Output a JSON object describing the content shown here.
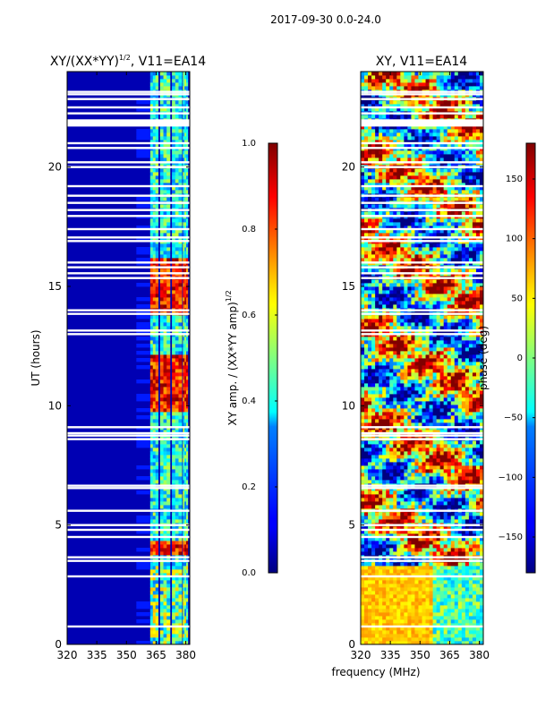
{
  "suptitle": "2017-09-30 0.0-24.0",
  "shared_xlabel": "frequency (MHz)",
  "chart_data": [
    {
      "type": "heatmap",
      "title": "XY/(XX*YY)",
      "title_exponent": "1/2",
      "title_suffix": ", V11=EA14",
      "xlabel": "",
      "ylabel": "UT (hours)",
      "xlim": [
        320,
        382
      ],
      "ylim": [
        0,
        24
      ],
      "xticks": [
        320,
        335,
        350,
        365,
        380
      ],
      "yticks": [
        0,
        5,
        10,
        15,
        20
      ],
      "colorbar": {
        "label": "XY amp. / (XX*YY amp)",
        "label_exponent": "1/2",
        "range": [
          0.0,
          1.0
        ],
        "ticks": [
          "0.0",
          "0.2",
          "0.4",
          "0.6",
          "0.8",
          "1.0"
        ],
        "colormap": "jet"
      },
      "background_value": 0.05,
      "active_band_mhz": [
        [
          362,
          366
        ],
        [
          367,
          372
        ],
        [
          373,
          378
        ],
        [
          378.5,
          381
        ]
      ],
      "active_band_value": 0.4,
      "high_amplitude_hours": [
        [
          3.8,
          4.3
        ],
        [
          9.8,
          12.2
        ],
        [
          13.8,
          16.2
        ]
      ],
      "high_amplitude_value": 0.85,
      "flagged_hours": [
        0.75,
        2.85,
        3.5,
        3.65,
        4.5,
        4.8,
        5.0,
        5.6,
        6.55,
        6.65,
        8.6,
        8.75,
        8.85,
        9.1,
        13.0,
        13.15,
        13.85,
        14.0,
        15.35,
        15.55,
        15.8,
        16.0,
        16.9,
        17.05,
        17.4,
        17.95,
        18.2,
        18.5,
        18.8,
        19.2,
        20.0,
        20.2,
        20.8,
        21.0,
        21.75,
        21.85,
        21.95,
        22.25,
        22.5,
        22.85,
        23.05,
        23.15
      ]
    },
    {
      "type": "heatmap",
      "title": "XY, V11=EA14",
      "xlabel": "",
      "ylabel": "",
      "xlim": [
        320,
        382
      ],
      "ylim": [
        0,
        24
      ],
      "xticks": [
        320,
        335,
        350,
        365,
        380
      ],
      "yticks": [
        0,
        5,
        10,
        15,
        20
      ],
      "colorbar": {
        "label": "phase (deg)",
        "range": [
          -180,
          180
        ],
        "ticks": [
          "−150",
          "−100",
          "−50",
          "0",
          "50",
          "100",
          "150"
        ],
        "colormap": "jet"
      },
      "flagged_hours": [
        0.75,
        2.85,
        3.5,
        3.65,
        4.5,
        4.8,
        5.0,
        5.6,
        6.55,
        6.65,
        8.6,
        8.75,
        8.85,
        9.1,
        13.0,
        13.15,
        13.85,
        14.0,
        15.35,
        15.55,
        15.8,
        16.0,
        16.9,
        17.05,
        17.4,
        17.95,
        18.2,
        18.5,
        18.8,
        19.2,
        20.0,
        20.2,
        20.8,
        21.0,
        21.75,
        21.85,
        21.95,
        22.25,
        22.5,
        22.85,
        23.05,
        23.15
      ]
    }
  ]
}
